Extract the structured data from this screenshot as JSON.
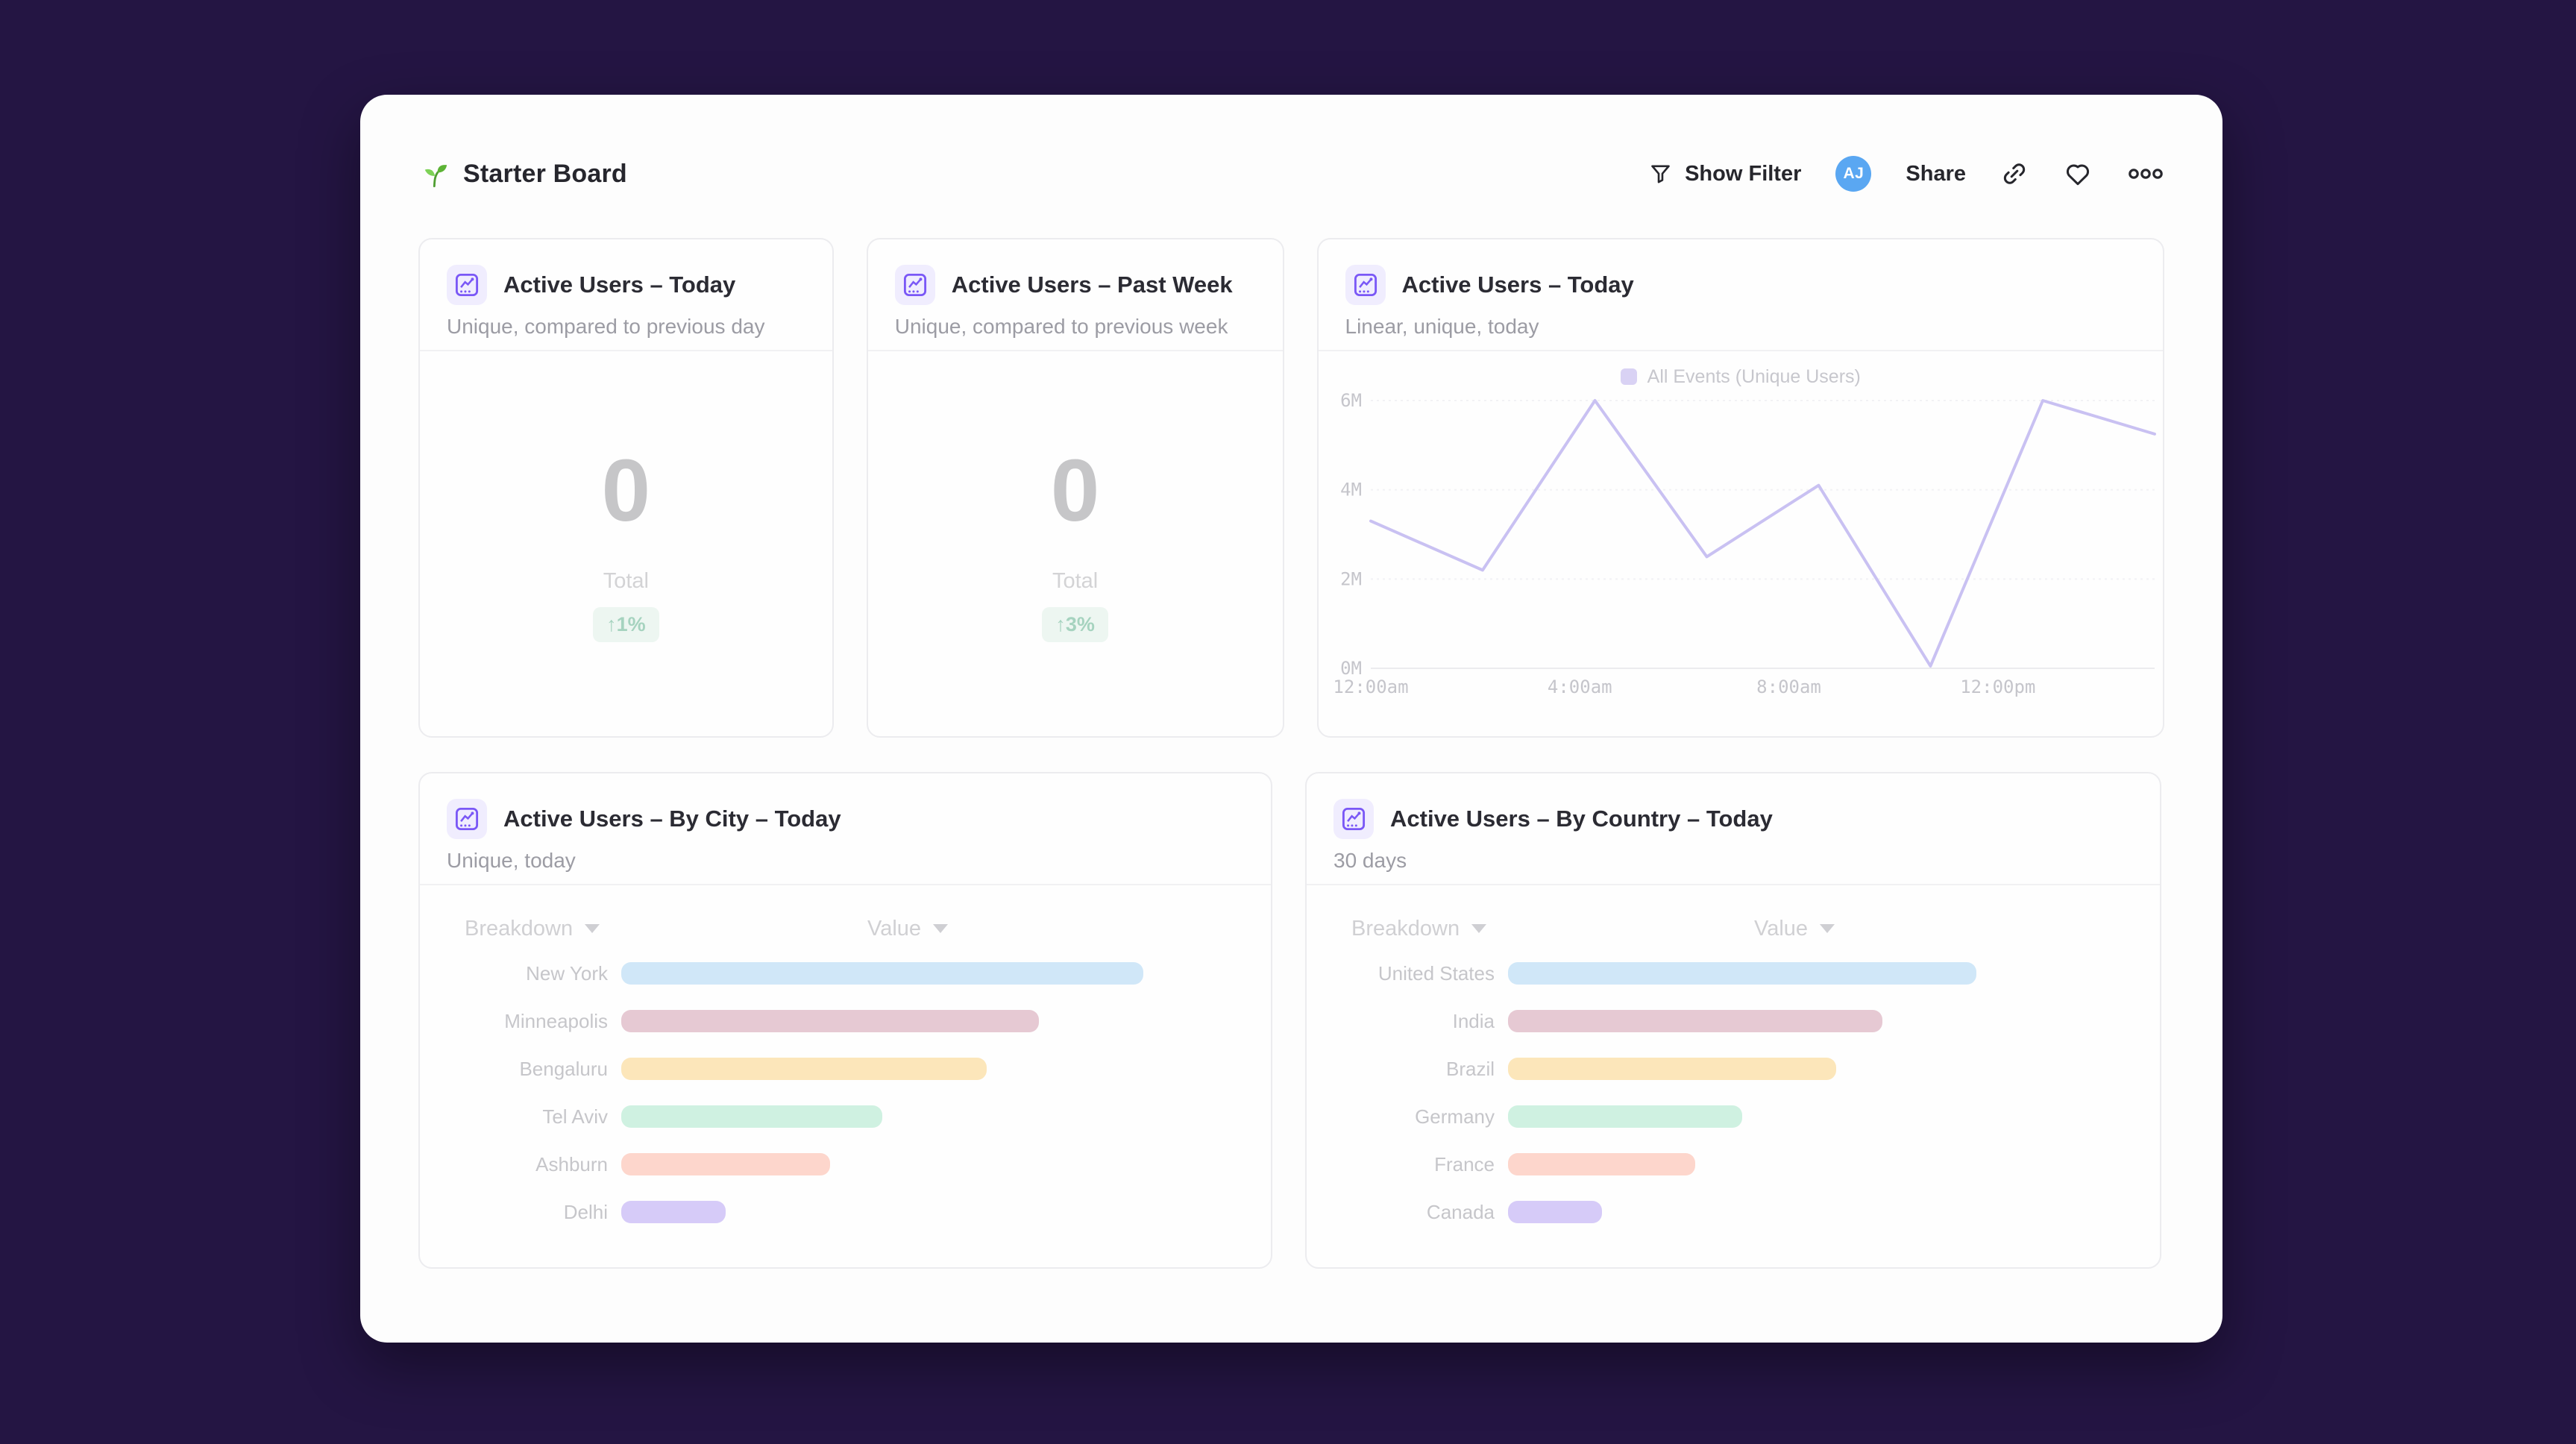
{
  "page": {
    "background": "#241543",
    "panel_background": "#fdfdfd"
  },
  "header": {
    "title": "Starter Board",
    "toolbar": {
      "show_filter_label": "Show Filter",
      "avatar_initials": "AJ",
      "avatar_color": "#5aa7f2",
      "share_label": "Share"
    }
  },
  "cards": {
    "active_today": {
      "title": "Active Users – Today",
      "subtitle": "Unique, compared to previous day",
      "value": "0",
      "value_label": "Total",
      "delta": "↑1%"
    },
    "active_week": {
      "title": "Active Users – Past Week",
      "subtitle": "Unique, compared to previous week",
      "value": "0",
      "value_label": "Total",
      "delta": "↑3%"
    },
    "line": {
      "title": "Active Users – Today",
      "subtitle": "Linear, unique, today"
    },
    "by_city": {
      "title": "Active Users – By City – Today",
      "subtitle": "Unique, today",
      "col_breakdown": "Breakdown",
      "col_value": "Value"
    },
    "by_country": {
      "title": "Active Users – By Country – Today",
      "subtitle": "30 days",
      "col_breakdown": "Breakdown",
      "col_value": "Value"
    }
  },
  "chart_data": [
    {
      "id": "active-users-line",
      "type": "line",
      "title": "Active Users – Today",
      "legend_position": "top",
      "grid": true,
      "x_domain_hours": [
        0,
        15
      ],
      "ylim_millions": [
        0,
        6
      ],
      "y_ticks": [
        {
          "value": 0,
          "label": "0M"
        },
        {
          "value": 2,
          "label": "2M"
        },
        {
          "value": 4,
          "label": "4M"
        },
        {
          "value": 6,
          "label": "6M"
        }
      ],
      "x_ticks": [
        {
          "hour": 0,
          "label": "12:00am"
        },
        {
          "hour": 4,
          "label": "4:00am"
        },
        {
          "hour": 8,
          "label": "8:00am"
        },
        {
          "hour": 12,
          "label": "12:00pm"
        }
      ],
      "series": [
        {
          "name": "All Events (Unique Users)",
          "color": "#c9c1f2",
          "legend_swatch": "#d9d2f4",
          "points": [
            {
              "hour": 0,
              "value_millions": 3.3
            },
            {
              "hour": 2.14,
              "value_millions": 2.2
            },
            {
              "hour": 4.29,
              "value_millions": 6.0
            },
            {
              "hour": 6.43,
              "value_millions": 2.5
            },
            {
              "hour": 8.57,
              "value_millions": 4.1
            },
            {
              "hour": 10.71,
              "value_millions": 0.05
            },
            {
              "hour": 12.86,
              "value_millions": 6.0
            },
            {
              "hour": 15,
              "value_millions": 5.25
            }
          ]
        }
      ]
    },
    {
      "id": "by-city",
      "type": "bar",
      "orientation": "horizontal",
      "categories": [
        "New York",
        "Minneapolis",
        "Bengaluru",
        "Tel Aviv",
        "Ashburn",
        "Delhi"
      ],
      "values_relative": [
        100,
        80,
        70,
        50,
        40,
        20
      ],
      "bar_colors": [
        "#d0e7f8",
        "#e6c9d3",
        "#fce6ba",
        "#cff1e1",
        "#fdd6cc",
        "#d6cbf8"
      ]
    },
    {
      "id": "by-country",
      "type": "bar",
      "orientation": "horizontal",
      "categories": [
        "United States",
        "India",
        "Brazil",
        "Germany",
        "France",
        "Canada"
      ],
      "values_relative": [
        100,
        80,
        70,
        50,
        40,
        20
      ],
      "bar_colors": [
        "#d0e7f8",
        "#e6c9d3",
        "#fce6ba",
        "#cff1e1",
        "#fdd6cc",
        "#d6cbf8"
      ]
    }
  ]
}
